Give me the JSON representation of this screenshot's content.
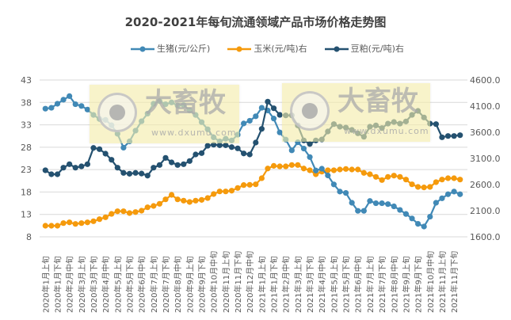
{
  "chart_data": {
    "type": "line",
    "title": "2020-2021年每旬流通领域产品市场价格走势图",
    "tick_labels": [
      "2020年1月上旬",
      "2020年1月下旬",
      "2020年2月中旬",
      "2020年3月上旬",
      "2020年3月下旬",
      "2020年4月中旬",
      "2020年5月上旬",
      "2020年5月下旬",
      "2020年6月中旬",
      "2020年7月上旬",
      "2020年7月下旬",
      "2020年8月中旬",
      "2020年9月上旬",
      "2020年9月下旬",
      "2020年10月中旬",
      "2020年11月上旬",
      "2020年11月下旬",
      "2020年12月中旬",
      "2021年1月上旬",
      "2021年1月下旬",
      "2021年2月中旬",
      "2021年3月上旬",
      "2021年3月下旬",
      "2021年4月中旬",
      "2021年5月上旬",
      "2021年5月下旬",
      "2021年6月中旬",
      "2021年7月上旬",
      "2021年7月下旬",
      "2021年8月中旬",
      "2021年9月上旬",
      "2021年9月下旬",
      "2021年10月中旬",
      "2021年11月上旬",
      "2021年11月下旬"
    ],
    "left_axis": {
      "ylim": [
        8,
        43
      ],
      "ticks": [
        "43",
        "38",
        "33",
        "28",
        "23",
        "18",
        "13",
        "8"
      ]
    },
    "right_axis": {
      "ylim": [
        1600,
        4600
      ],
      "ticks": [
        "4600.0",
        "4100.0",
        "3600.0",
        "3100.0",
        "2600.0",
        "2100.0",
        "1600.0"
      ]
    },
    "grid": true,
    "legend_position": "top",
    "series": [
      {
        "name": "生猪(元/公斤)",
        "axis": "left",
        "color": "#4189b6",
        "values": [
          36.6,
          36.8,
          37.7,
          38.6,
          39.4,
          37.6,
          37.2,
          36.4,
          35.2,
          34.3,
          34.1,
          32.9,
          31.0,
          27.9,
          29.3,
          31.7,
          33.8,
          35.5,
          37.7,
          38.3,
          37.6,
          38.0,
          37.3,
          37.4,
          36.2,
          35.2,
          33.6,
          32.0,
          30.2,
          29.3,
          29.9,
          29.5,
          30.8,
          33.3,
          33.9,
          34.9,
          36.8,
          36.2,
          34.4,
          31.3,
          29.7,
          27.3,
          29.1,
          27.7,
          25.8,
          22.8,
          23.2,
          21.7,
          19.7,
          18.1,
          17.8,
          15.6,
          13.8,
          13.8,
          16.0,
          15.5,
          15.5,
          15.3,
          14.8,
          14.0,
          13.1,
          12.1,
          10.9,
          10.3,
          12.5,
          15.6,
          16.6,
          17.5,
          18.1,
          17.5
        ]
      },
      {
        "name": "玉米(元/吨)右",
        "axis": "right",
        "color": "#f59a0c",
        "values": [
          1812,
          1812,
          1812,
          1862,
          1877,
          1847,
          1862,
          1877,
          1898,
          1938,
          1974,
          2039,
          2089,
          2089,
          2055,
          2074,
          2100,
          2165,
          2191,
          2232,
          2317,
          2403,
          2317,
          2292,
          2267,
          2292,
          2307,
          2342,
          2418,
          2468,
          2468,
          2483,
          2535,
          2590,
          2595,
          2605,
          2721,
          2907,
          2958,
          2948,
          2948,
          2974,
          2974,
          2907,
          2873,
          2797,
          2847,
          2873,
          2873,
          2888,
          2898,
          2888,
          2888,
          2823,
          2797,
          2747,
          2686,
          2747,
          2771,
          2747,
          2696,
          2605,
          2555,
          2545,
          2555,
          2646,
          2696,
          2721,
          2721,
          2696
        ]
      },
      {
        "name": "豆粕(元/吨)右",
        "axis": "right",
        "color": "#245170",
        "values": [
          2873,
          2797,
          2797,
          2923,
          2989,
          2923,
          2948,
          2989,
          3301,
          3277,
          3191,
          3074,
          2923,
          2823,
          2807,
          2823,
          2810,
          2771,
          2923,
          2974,
          3110,
          3024,
          2974,
          2989,
          3050,
          3176,
          3201,
          3342,
          3362,
          3352,
          3352,
          3316,
          3292,
          3195,
          3176,
          3403,
          3665,
          4186,
          4059,
          3933,
          3923,
          3923,
          3731,
          3444,
          3377,
          3444,
          3463,
          3615,
          3756,
          3706,
          3690,
          3645,
          3580,
          3514,
          3706,
          3731,
          3680,
          3766,
          3797,
          3766,
          3807,
          3933,
          4009,
          3883,
          3766,
          3756,
          3504,
          3529,
          3529,
          3544
        ]
      }
    ]
  },
  "watermark": {
    "logo_text": "大畜牧",
    "url": "www.dxumu.com"
  }
}
